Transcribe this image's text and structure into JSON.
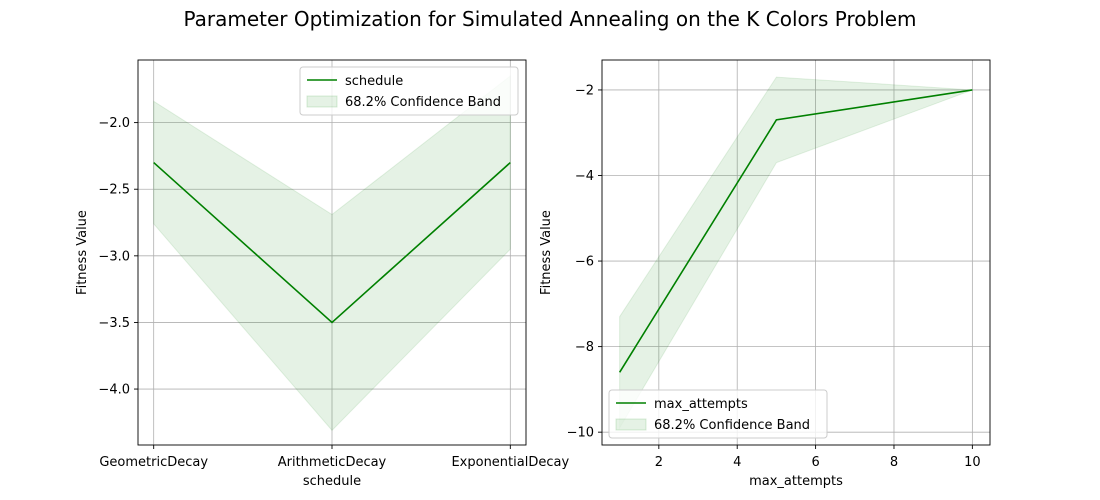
{
  "figure": {
    "title": "Parameter Optimization for Simulated Annealing on the K Colors Problem"
  },
  "colors": {
    "line": "#008000",
    "band_fill": "#008000",
    "grid": "#b0b0b0",
    "axes": "#000000"
  },
  "chart_data": [
    {
      "type": "line",
      "xlabel": "schedule",
      "ylabel": "Fitness Value",
      "x_scale": "categorical",
      "categories": [
        "GeometricDecay",
        "ArithmeticDecay",
        "ExponentialDecay"
      ],
      "ylim": [
        -4.42,
        -1.53
      ],
      "yticks": [
        -4.0,
        -3.5,
        -3.0,
        -2.5,
        -2.0
      ],
      "ytick_labels": [
        "−4.0",
        "−3.5",
        "−3.0",
        "−2.5",
        "−2.0"
      ],
      "grid": true,
      "legend_position": "upper-right",
      "series": [
        {
          "name": "schedule",
          "values": [
            -2.3,
            -3.5,
            -2.3
          ],
          "band_lower": [
            -2.76,
            -4.31,
            -2.95
          ],
          "band_upper": [
            -1.84,
            -2.69,
            -1.65
          ],
          "band_name": "68.2% Confidence Band"
        }
      ]
    },
    {
      "type": "line",
      "xlabel": "max_attempts",
      "ylabel": "Fitness Value",
      "x": [
        1,
        5,
        10
      ],
      "xlim": [
        0.55,
        10.45
      ],
      "ylim": [
        -10.3,
        -1.3
      ],
      "xticks": [
        2,
        4,
        6,
        8,
        10
      ],
      "xtick_labels": [
        "2",
        "4",
        "6",
        "8",
        "10"
      ],
      "yticks": [
        -10,
        -8,
        -6,
        -4,
        -2
      ],
      "ytick_labels": [
        "−10",
        "−8",
        "−6",
        "−4",
        "−2"
      ],
      "grid": true,
      "legend_position": "lower-left",
      "series": [
        {
          "name": "max_attempts",
          "values": [
            -8.6,
            -2.7,
            -2.0
          ],
          "band_lower": [
            -9.9,
            -3.7,
            -2.0
          ],
          "band_upper": [
            -7.3,
            -1.7,
            -2.0
          ],
          "band_name": "68.2% Confidence Band"
        }
      ]
    }
  ]
}
